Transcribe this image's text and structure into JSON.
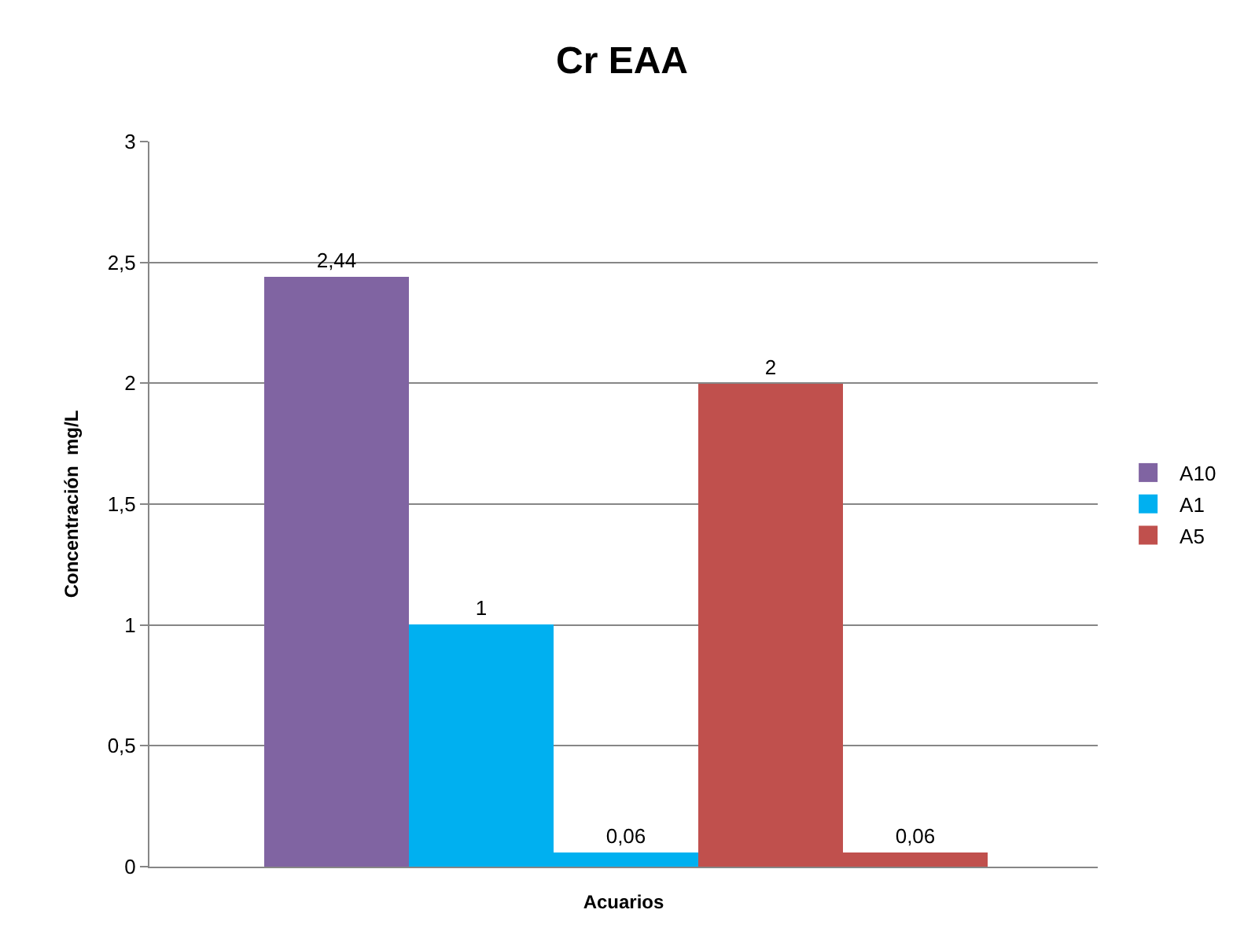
{
  "chart_data": {
    "type": "bar",
    "title": "Cr EAA",
    "xlabel": "Acuarios",
    "ylabel": "Concentración  mg/L",
    "categories": [
      null,
      null,
      null,
      null,
      null
    ],
    "series": [
      {
        "name": "A10",
        "color": "#8064a2",
        "values": [
          2.44,
          null,
          null,
          null,
          null
        ],
        "value_labels": [
          "2,44",
          null,
          null,
          null,
          null
        ]
      },
      {
        "name": "A1",
        "color": "#00b0f0",
        "values": [
          null,
          1,
          0.06,
          null,
          null
        ],
        "value_labels": [
          null,
          "1",
          "0,06",
          null,
          null
        ]
      },
      {
        "name": "A5",
        "color": "#c0504d",
        "values": [
          null,
          null,
          null,
          2,
          0.06
        ],
        "value_labels": [
          null,
          null,
          null,
          "2",
          "0,06"
        ]
      }
    ],
    "ylim": [
      0,
      3
    ],
    "yticks": [
      0,
      {
        "value": 0.5,
        "label": "0,5"
      },
      1,
      {
        "value": 1.5,
        "label": "1,5"
      },
      2,
      {
        "value": 2.5,
        "label": "2,5"
      },
      3
    ],
    "grid": "y",
    "legend": "right"
  }
}
